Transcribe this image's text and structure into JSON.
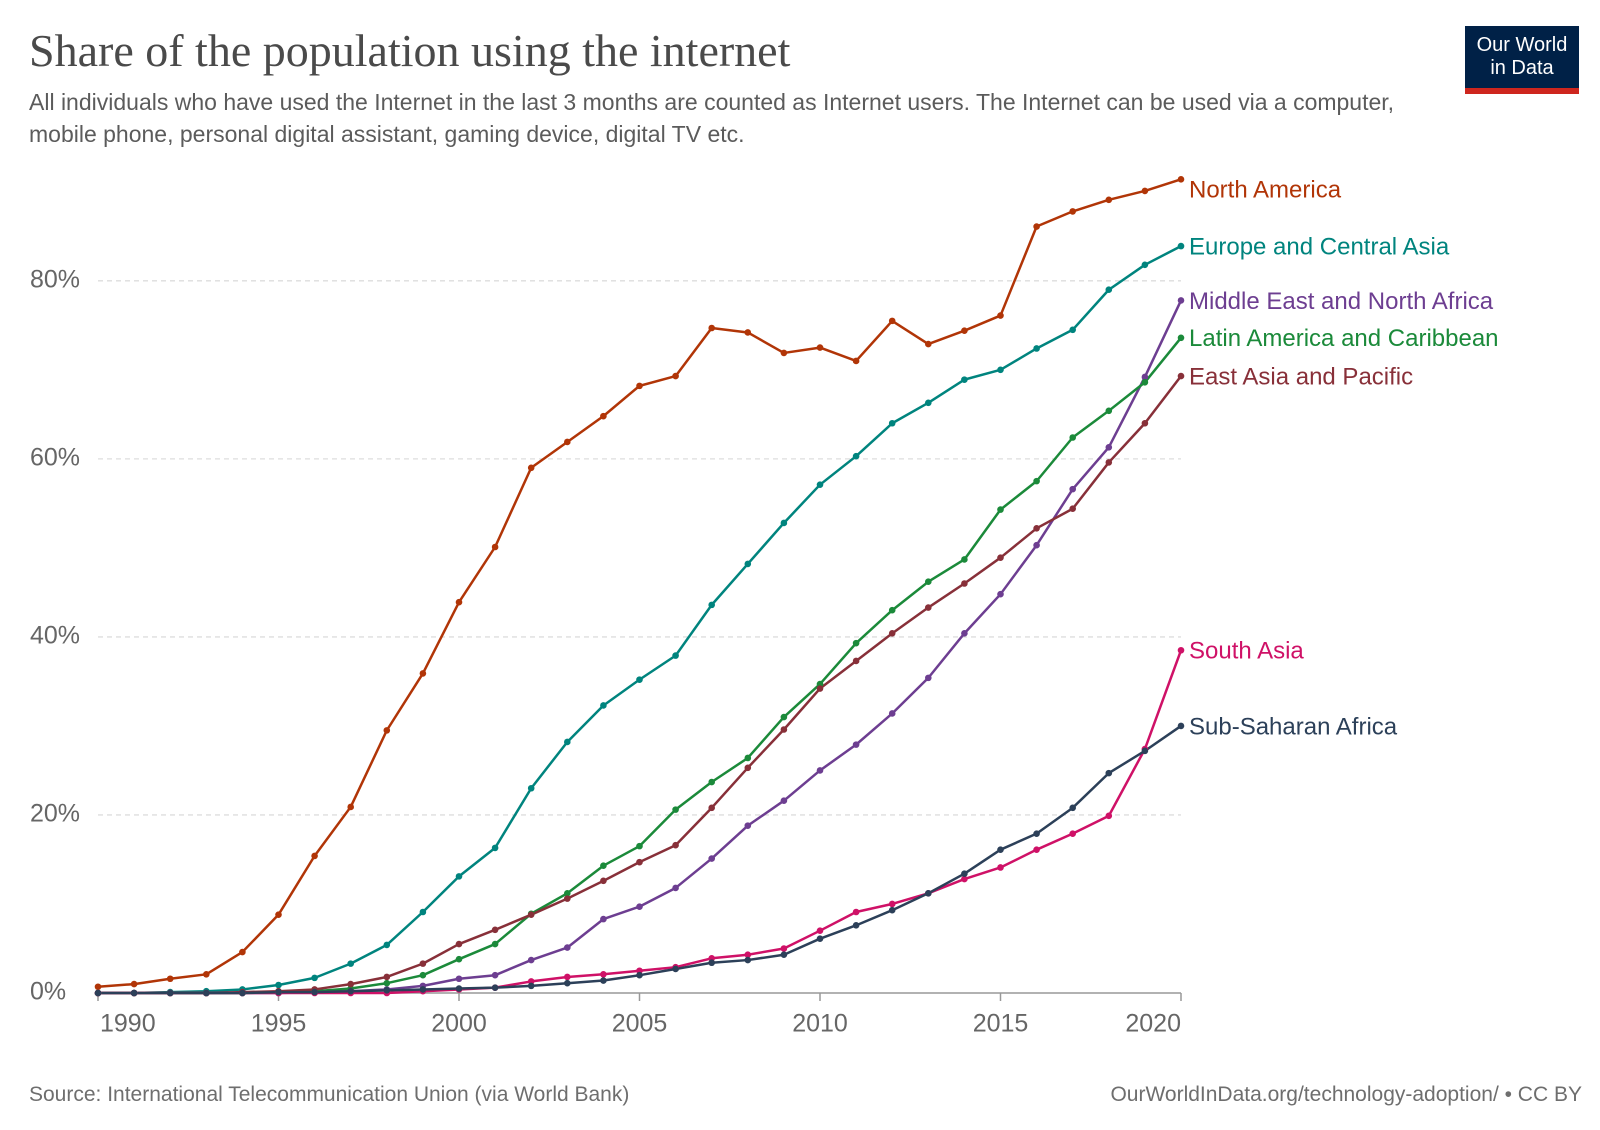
{
  "chart_data": {
    "type": "line",
    "title": "Share of the population using the internet",
    "subtitle": "All individuals who have used the Internet in the last 3 months are counted as Internet users. The Internet can be used via a computer, mobile phone, personal digital assistant, gaming device, digital TV etc.",
    "logo": [
      "Our World",
      "in Data"
    ],
    "source": "Source: International Telecommunication Union (via World Bank)",
    "credit": "OurWorldInData.org/technology-adoption/ • CC BY",
    "x": [
      1990,
      1991,
      1992,
      1993,
      1994,
      1995,
      1996,
      1997,
      1998,
      1999,
      2000,
      2001,
      2002,
      2003,
      2004,
      2005,
      2006,
      2007,
      2008,
      2009,
      2010,
      2011,
      2012,
      2013,
      2014,
      2015,
      2016,
      2017,
      2018,
      2019,
      2020
    ],
    "xlim": [
      1990,
      2020
    ],
    "xticks": [
      1990,
      1995,
      2000,
      2005,
      2010,
      2015,
      2020
    ],
    "ylim": [
      0,
      92
    ],
    "yticks": [
      {
        "value": 0,
        "label": "0%"
      },
      {
        "value": 20,
        "label": "20%"
      },
      {
        "value": 40,
        "label": "40%"
      },
      {
        "value": 60,
        "label": "60%"
      },
      {
        "value": 80,
        "label": "80%"
      }
    ],
    "grid": true,
    "series": [
      {
        "name": "North America",
        "color": "#b13507",
        "values": [
          0.7,
          1.0,
          1.6,
          2.1,
          4.6,
          8.8,
          15.4,
          20.9,
          29.5,
          35.9,
          43.9,
          50.1,
          59.0,
          61.9,
          64.8,
          68.2,
          69.3,
          74.7,
          74.2,
          71.9,
          72.5,
          71.0,
          75.5,
          72.9,
          74.4,
          76.1,
          86.1,
          87.8,
          89.1,
          90.1,
          91.4
        ]
      },
      {
        "name": "Europe and Central Asia",
        "color": "#00847e",
        "values": [
          0,
          0,
          0.1,
          0.2,
          0.4,
          0.9,
          1.7,
          3.3,
          5.4,
          9.1,
          13.1,
          16.3,
          23.0,
          28.2,
          32.3,
          35.2,
          37.9,
          43.6,
          48.2,
          52.8,
          57.1,
          60.3,
          64.0,
          66.3,
          68.9,
          70.0,
          72.4,
          74.5,
          79.0,
          81.8,
          83.9
        ]
      },
      {
        "name": "Middle East and North Africa",
        "color": "#6d3e91",
        "values": [
          0,
          0,
          0,
          0,
          0,
          0,
          0.1,
          0.2,
          0.4,
          0.8,
          1.6,
          2.0,
          3.7,
          5.1,
          8.3,
          9.7,
          11.8,
          15.1,
          18.8,
          21.6,
          25.0,
          27.9,
          31.4,
          35.4,
          40.4,
          44.8,
          50.3,
          56.6,
          61.3,
          69.2,
          77.8
        ]
      },
      {
        "name": "Latin America and Caribbean",
        "color": "#1b8a3a",
        "values": [
          0,
          0,
          0,
          0,
          0,
          0.1,
          0.2,
          0.5,
          1.1,
          2.0,
          3.8,
          5.5,
          8.9,
          11.2,
          14.3,
          16.5,
          20.6,
          23.7,
          26.4,
          31.0,
          34.7,
          39.3,
          43.0,
          46.2,
          48.7,
          54.3,
          57.5,
          62.4,
          65.4,
          68.6,
          73.6
        ]
      },
      {
        "name": "East Asia and Pacific",
        "color": "#883039",
        "values": [
          0,
          0,
          0,
          0,
          0.1,
          0.2,
          0.4,
          1.0,
          1.8,
          3.3,
          5.5,
          7.1,
          8.8,
          10.6,
          12.6,
          14.7,
          16.6,
          20.8,
          25.3,
          29.6,
          34.2,
          37.3,
          40.4,
          43.3,
          46.0,
          48.9,
          52.2,
          54.4,
          59.6,
          64.0,
          69.3
        ]
      },
      {
        "name": "South Asia",
        "color": "#cf1167",
        "values": [
          0,
          0,
          0,
          0,
          0,
          0,
          0,
          0,
          0,
          0.2,
          0.4,
          0.6,
          1.3,
          1.8,
          2.1,
          2.5,
          2.9,
          3.9,
          4.3,
          5.0,
          7.0,
          9.1,
          10.0,
          11.2,
          12.8,
          14.1,
          16.1,
          17.9,
          19.9,
          27.4,
          38.5
        ]
      },
      {
        "name": "Sub-Saharan Africa",
        "color": "#2c4059",
        "values": [
          0,
          0,
          0,
          0,
          0,
          0.1,
          0.1,
          0.2,
          0.3,
          0.4,
          0.5,
          0.6,
          0.8,
          1.1,
          1.4,
          2.0,
          2.7,
          3.4,
          3.7,
          4.3,
          6.1,
          7.6,
          9.3,
          11.2,
          13.4,
          16.1,
          17.9,
          20.8,
          24.7,
          27.2,
          30.0
        ]
      }
    ]
  }
}
